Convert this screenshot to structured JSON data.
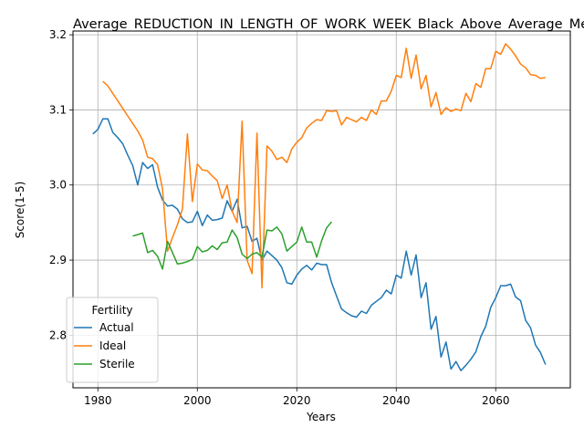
{
  "chart_data": {
    "type": "line",
    "title": "Average_REDUCTION_IN_LENGTH_OF_WORK_WEEK_Black_Above_Average_Men",
    "xlabel": "Years",
    "ylabel": "Score(1-5)",
    "xlim": [
      1975,
      2075
    ],
    "ylim": [
      2.73,
      3.205
    ],
    "xticks": [
      1980,
      2000,
      2020,
      2040,
      2060
    ],
    "yticks": [
      2.8,
      2.9,
      3.0,
      3.1,
      3.2
    ],
    "grid": true,
    "legend": {
      "title": "Fertility",
      "placement": "lower-left"
    },
    "series": [
      {
        "name": "Actual",
        "color": "#1f77b4",
        "x": [
          1979,
          1980,
          1981,
          1982,
          1983,
          1984,
          1985,
          1986,
          1987,
          1988,
          1989,
          1990,
          1991,
          1992,
          1993,
          1994,
          1995,
          1996,
          1997,
          1998,
          1999,
          2000,
          2001,
          2002,
          2003,
          2004,
          2005,
          2006,
          2007,
          2008,
          2009,
          2010,
          2011,
          2012,
          2013,
          2014,
          2015,
          2016,
          2017,
          2018,
          2019,
          2020,
          2021,
          2022,
          2023,
          2024,
          2025,
          2026,
          2027,
          2028,
          2029,
          2030,
          2031,
          2032,
          2033,
          2034,
          2035,
          2036,
          2037,
          2038,
          2039,
          2040,
          2041,
          2042,
          2043,
          2044,
          2045,
          2046,
          2047,
          2048,
          2049,
          2050,
          2051,
          2052,
          2053,
          2054,
          2055,
          2056,
          2057,
          2058,
          2059,
          2060,
          2061,
          2062,
          2063,
          2064,
          2065,
          2066,
          2067,
          2068,
          2069,
          2070
        ],
        "values": [
          3.068,
          3.074,
          3.088,
          3.088,
          3.07,
          3.063,
          3.055,
          3.04,
          3.026,
          3.0,
          3.03,
          3.022,
          3.027,
          2.997,
          2.98,
          2.972,
          2.973,
          2.968,
          2.955,
          2.95,
          2.951,
          2.965,
          2.946,
          2.96,
          2.953,
          2.954,
          2.956,
          2.979,
          2.965,
          2.981,
          2.943,
          2.945,
          2.925,
          2.929,
          2.9,
          2.912,
          2.906,
          2.9,
          2.89,
          2.87,
          2.868,
          2.88,
          2.888,
          2.893,
          2.887,
          2.896,
          2.894,
          2.894,
          2.87,
          2.852,
          2.835,
          2.83,
          2.826,
          2.824,
          2.832,
          2.829,
          2.84,
          2.845,
          2.85,
          2.86,
          2.855,
          2.88,
          2.876,
          2.912,
          2.88,
          2.907,
          2.85,
          2.87,
          2.808,
          2.825,
          2.771,
          2.791,
          2.755,
          2.765,
          2.753,
          2.76,
          2.768,
          2.778,
          2.798,
          2.812,
          2.837,
          2.85,
          2.866,
          2.866,
          2.868,
          2.851,
          2.846,
          2.82,
          2.81,
          2.787,
          2.777,
          2.761
        ]
      },
      {
        "name": "Ideal",
        "color": "#ff7f0e",
        "x": [
          1981,
          1982,
          1983,
          1984,
          1985,
          1986,
          1987,
          1988,
          1989,
          1990,
          1991,
          1992,
          1993,
          1994,
          1995,
          1996,
          1997,
          1998,
          1999,
          2000,
          2001,
          2002,
          2003,
          2004,
          2005,
          2006,
          2007,
          2008,
          2009,
          2010,
          2011,
          2012,
          2013,
          2014,
          2015,
          2016,
          2017,
          2018,
          2019,
          2020,
          2021,
          2022,
          2023,
          2024,
          2025,
          2026,
          2027,
          2028,
          2029,
          2030,
          2031,
          2032,
          2033,
          2034,
          2035,
          2036,
          2037,
          2038,
          2039,
          2040,
          2041,
          2042,
          2043,
          2044,
          2045,
          2046,
          2047,
          2048,
          2049,
          2050,
          2051,
          2052,
          2053,
          2054,
          2055,
          2056,
          2057,
          2058,
          2059,
          2060,
          2061,
          2062,
          2063,
          2064,
          2065,
          2066,
          2067,
          2068,
          2069,
          2070
        ],
        "values": [
          3.138,
          3.132,
          3.122,
          3.112,
          3.102,
          3.092,
          3.082,
          3.072,
          3.06,
          3.037,
          3.035,
          3.027,
          2.995,
          2.912,
          2.93,
          2.947,
          2.968,
          3.068,
          2.978,
          3.028,
          3.02,
          3.019,
          3.012,
          3.006,
          2.982,
          3.0,
          2.965,
          2.95,
          3.085,
          2.9,
          2.882,
          3.069,
          2.863,
          3.052,
          3.045,
          3.034,
          3.037,
          3.03,
          3.048,
          3.057,
          3.063,
          3.076,
          3.082,
          3.087,
          3.086,
          3.099,
          3.098,
          3.099,
          3.08,
          3.09,
          3.087,
          3.084,
          3.09,
          3.086,
          3.1,
          3.094,
          3.112,
          3.112,
          3.125,
          3.146,
          3.143,
          3.182,
          3.142,
          3.173,
          3.128,
          3.146,
          3.104,
          3.123,
          3.094,
          3.103,
          3.098,
          3.101,
          3.099,
          3.122,
          3.111,
          3.135,
          3.13,
          3.155,
          3.155,
          3.178,
          3.174,
          3.188,
          3.181,
          3.172,
          3.161,
          3.156,
          3.147,
          3.146,
          3.142,
          3.143
        ]
      },
      {
        "name": "Sterile",
        "color": "#2ca02c",
        "x": [
          1987,
          1988,
          1989,
          1990,
          1991,
          1992,
          1993,
          1994,
          1995,
          1996,
          1997,
          1998,
          1999,
          2000,
          2001,
          2002,
          2003,
          2004,
          2005,
          2006,
          2007,
          2008,
          2009,
          2010,
          2011,
          2012,
          2013,
          2014,
          2015,
          2016,
          2017,
          2018,
          2019,
          2020,
          2021,
          2022,
          2023,
          2024,
          2025,
          2026,
          2027
        ],
        "values": [
          2.932,
          2.934,
          2.936,
          2.91,
          2.913,
          2.905,
          2.888,
          2.925,
          2.91,
          2.895,
          2.896,
          2.898,
          2.901,
          2.918,
          2.911,
          2.913,
          2.919,
          2.914,
          2.923,
          2.924,
          2.94,
          2.93,
          2.908,
          2.902,
          2.908,
          2.91,
          2.904,
          2.94,
          2.939,
          2.944,
          2.935,
          2.912,
          2.918,
          2.924,
          2.944,
          2.924,
          2.924,
          2.904,
          2.926,
          2.943,
          2.951
        ]
      }
    ]
  }
}
